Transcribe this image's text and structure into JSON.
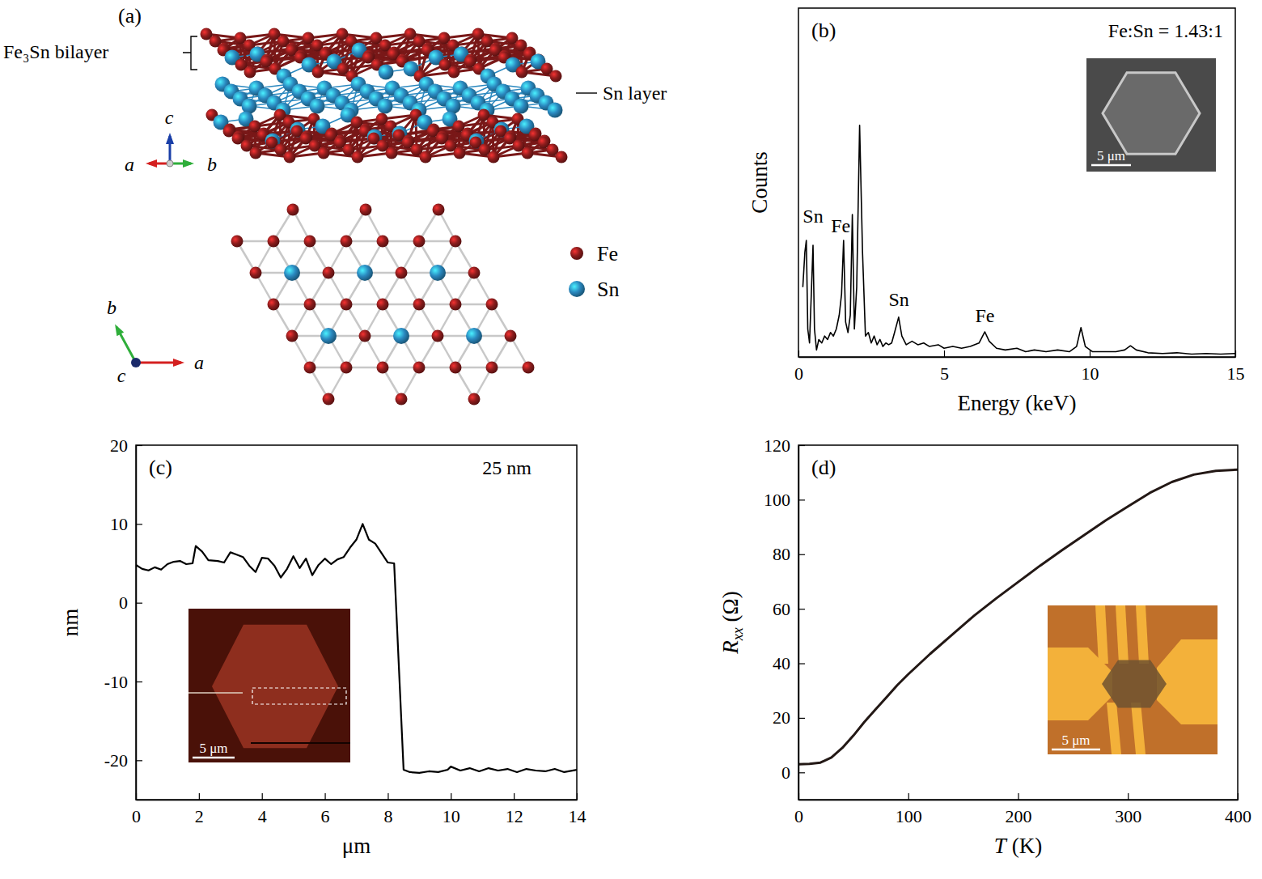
{
  "chart_data": [
    {
      "type": "line",
      "title": "(b)",
      "x_label": "Energy (keV)",
      "y_label": "Counts",
      "x": [
        0.15,
        0.22,
        0.27,
        0.32,
        0.38,
        0.45,
        0.5,
        0.55,
        0.62,
        0.7,
        0.8,
        0.9,
        1.0,
        1.1,
        1.2,
        1.3,
        1.4,
        1.48,
        1.55,
        1.62,
        1.7,
        1.78,
        1.85,
        1.92,
        2.0,
        2.1,
        2.2,
        2.3,
        2.4,
        2.5,
        2.6,
        2.7,
        2.8,
        2.9,
        3.0,
        3.1,
        3.2,
        3.3,
        3.44,
        3.55,
        3.7,
        3.9,
        4.1,
        4.3,
        4.5,
        4.8,
        5.0,
        5.3,
        5.6,
        5.9,
        6.2,
        6.4,
        6.55,
        6.8,
        7.1,
        7.5,
        7.8,
        8.1,
        8.5,
        8.9,
        9.3,
        9.55,
        9.7,
        9.85,
        10.1,
        10.5,
        10.9,
        11.2,
        11.4,
        11.6,
        12.0,
        12.5,
        13.0,
        13.5,
        14.0,
        14.5,
        15.0
      ],
      "values": [
        20,
        30,
        33.4,
        8,
        4,
        20,
        32,
        8,
        2,
        5,
        4,
        6,
        5,
        7,
        6,
        8,
        12,
        18,
        33.4,
        10,
        7,
        12,
        40.8,
        8,
        20,
        66.4,
        30,
        6,
        7,
        4,
        6,
        3.5,
        5,
        3,
        4,
        3.5,
        4,
        7,
        11.4,
        6,
        3.5,
        4.5,
        3.5,
        4,
        3,
        3.5,
        2.5,
        3,
        2.5,
        3,
        4,
        7.2,
        4.5,
        2.5,
        2,
        2.5,
        1.5,
        2,
        1.5,
        2,
        1.5,
        3,
        8.4,
        3,
        1.5,
        1.5,
        1.5,
        2,
        3.2,
        2,
        1.2,
        1,
        1.2,
        0.8,
        1,
        0.8,
        1
      ],
      "xlim": [
        0,
        15
      ],
      "xticks": [
        0,
        5,
        10,
        15
      ],
      "ylim": [
        0,
        100
      ],
      "tick_labels": "x",
      "color": "#000000",
      "annotations": [
        {
          "text": "Fe:Sn = 1.43:1"
        },
        {
          "text": "Sn",
          "x": 0.5,
          "y": 38.5
        },
        {
          "text": "Fe",
          "x": 1.45,
          "y": 35.7
        },
        {
          "text": "Sn",
          "x": 3.45,
          "y": 14.6
        },
        {
          "text": "Fe",
          "x": 6.4,
          "y": 10
        }
      ],
      "inset_scale_bar": "5 μm"
    },
    {
      "type": "line",
      "title": "(c)",
      "x_label": "μm",
      "y_label": "nm",
      "x": [
        0,
        0.2,
        0.4,
        0.6,
        0.8,
        1.0,
        1.2,
        1.4,
        1.6,
        1.8,
        1.9,
        2.1,
        2.3,
        2.6,
        2.8,
        3.0,
        3.2,
        3.4,
        3.6,
        3.8,
        4.0,
        4.2,
        4.4,
        4.6,
        4.8,
        5.0,
        5.2,
        5.4,
        5.6,
        5.8,
        6.0,
        6.2,
        6.4,
        6.6,
        6.8,
        7.0,
        7.2,
        7.4,
        7.6,
        7.8,
        8.0,
        8.2,
        8.5,
        8.7,
        9.0,
        9.3,
        9.6,
        9.9,
        10.0,
        10.3,
        10.6,
        10.9,
        11.2,
        11.5,
        11.8,
        12.1,
        12.4,
        12.7,
        13.0,
        13.3,
        13.6,
        14.0
      ],
      "values": [
        4.8,
        4.3,
        4.1,
        4.5,
        4.2,
        4.9,
        5.2,
        5.3,
        4.9,
        5.0,
        7.2,
        6.5,
        5.4,
        5.3,
        5.1,
        6.4,
        6.1,
        5.8,
        4.7,
        3.9,
        5.7,
        5.6,
        4.7,
        3.2,
        4.3,
        5.9,
        4.4,
        5.6,
        3.5,
        4.8,
        5.6,
        4.9,
        5.5,
        5.8,
        7.0,
        8.0,
        10.0,
        8.0,
        7.5,
        6.3,
        5.1,
        5.0,
        -21.2,
        -21.5,
        -21.6,
        -21.4,
        -21.5,
        -21.2,
        -20.8,
        -21.3,
        -21.0,
        -21.4,
        -21.0,
        -21.3,
        -21.1,
        -21.5,
        -21.1,
        -21.3,
        -21.4,
        -21.1,
        -21.5,
        -21.2
      ],
      "xlim": [
        0,
        14
      ],
      "xticks": [
        0,
        2,
        4,
        6,
        8,
        10,
        12,
        14
      ],
      "ylim": [
        -25,
        20
      ],
      "yticks": [
        -20,
        -10,
        0,
        10,
        20
      ],
      "color": "#000000",
      "annotations": [
        {
          "text": "25 nm"
        }
      ],
      "inset_scale_bar": "5 μm"
    },
    {
      "type": "line",
      "title": "(d)",
      "x_label": "T (K)",
      "y_label": "Rxx (Ω)",
      "x": [
        0,
        10,
        20,
        30,
        40,
        50,
        60,
        70,
        80,
        90,
        100,
        120,
        140,
        160,
        180,
        200,
        220,
        240,
        260,
        280,
        300,
        320,
        340,
        360,
        380,
        400
      ],
      "values": [
        3,
        3.1,
        3.6,
        5.5,
        9,
        13.5,
        18.5,
        23,
        27.5,
        32,
        36,
        43.5,
        50.5,
        57.5,
        63.8,
        69.8,
        75.8,
        81.5,
        87,
        92.5,
        97.5,
        102.5,
        106.5,
        109.2,
        110.6,
        111
      ],
      "xlim": [
        0,
        400
      ],
      "xticks": [
        0,
        100,
        200,
        300,
        400
      ],
      "ylim": [
        -10,
        120
      ],
      "yticks": [
        0,
        20,
        40,
        60,
        80,
        100,
        120
      ],
      "color": "#231815",
      "inset_scale_bar": "5 μm"
    }
  ],
  "diagram": {
    "label": "(a)",
    "bilayer_label": "Fe₃Sn bilayer",
    "sn_layer_label": "Sn layer",
    "side_axes": [
      "c",
      "a",
      "b"
    ],
    "top_axes": [
      "b",
      "c",
      "a"
    ],
    "species": [
      {
        "name": "Fe",
        "color": "#8b1c1c"
      },
      {
        "name": "Sn",
        "color": "#2a88bf"
      }
    ]
  }
}
